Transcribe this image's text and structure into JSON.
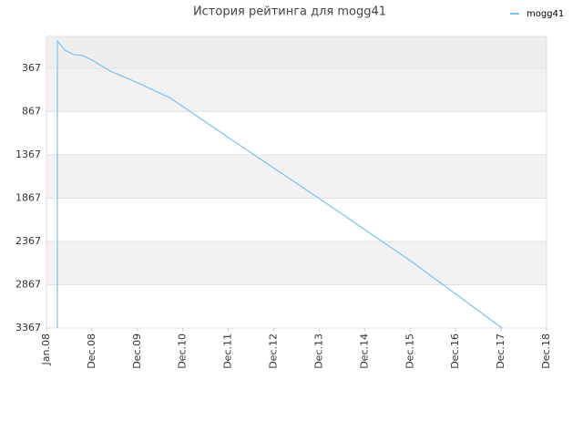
{
  "chart_data": {
    "type": "line",
    "title": "История рейтинга для mogg41",
    "series": [
      {
        "name": "mogg41",
        "color": "#7cc0f0",
        "x": [
          0.24,
          0.24,
          0.4,
          0.6,
          0.8,
          1.0,
          1.4,
          2.0,
          2.7,
          3.0,
          4.0,
          6.0,
          8.0,
          10.02
        ],
        "values": [
          3367,
          52,
          157,
          210,
          220,
          272,
          399,
          535,
          704,
          809,
          1167,
          1872,
          2588,
          3367
        ]
      }
    ],
    "ylim": [
      3367,
      0
    ],
    "yticks": [
      367,
      867,
      1367,
      1867,
      2367,
      2867,
      3367
    ],
    "xlim": [
      0,
      11
    ],
    "xticks": [
      {
        "value": 0,
        "label": "Jan.08"
      },
      {
        "value": 1,
        "label": "Dec.08"
      },
      {
        "value": 2,
        "label": "Dec.09"
      },
      {
        "value": 3,
        "label": "Dec.10"
      },
      {
        "value": 4,
        "label": "Dec.11"
      },
      {
        "value": 5,
        "label": "Dec.12"
      },
      {
        "value": 6,
        "label": "Dec.13"
      },
      {
        "value": 7,
        "label": "Dec.14"
      },
      {
        "value": 8,
        "label": "Dec.15"
      },
      {
        "value": 9,
        "label": "Dec.16"
      },
      {
        "value": 10,
        "label": "Dec.17"
      },
      {
        "value": 11,
        "label": "Dec.18"
      }
    ],
    "legend": "top-right"
  }
}
